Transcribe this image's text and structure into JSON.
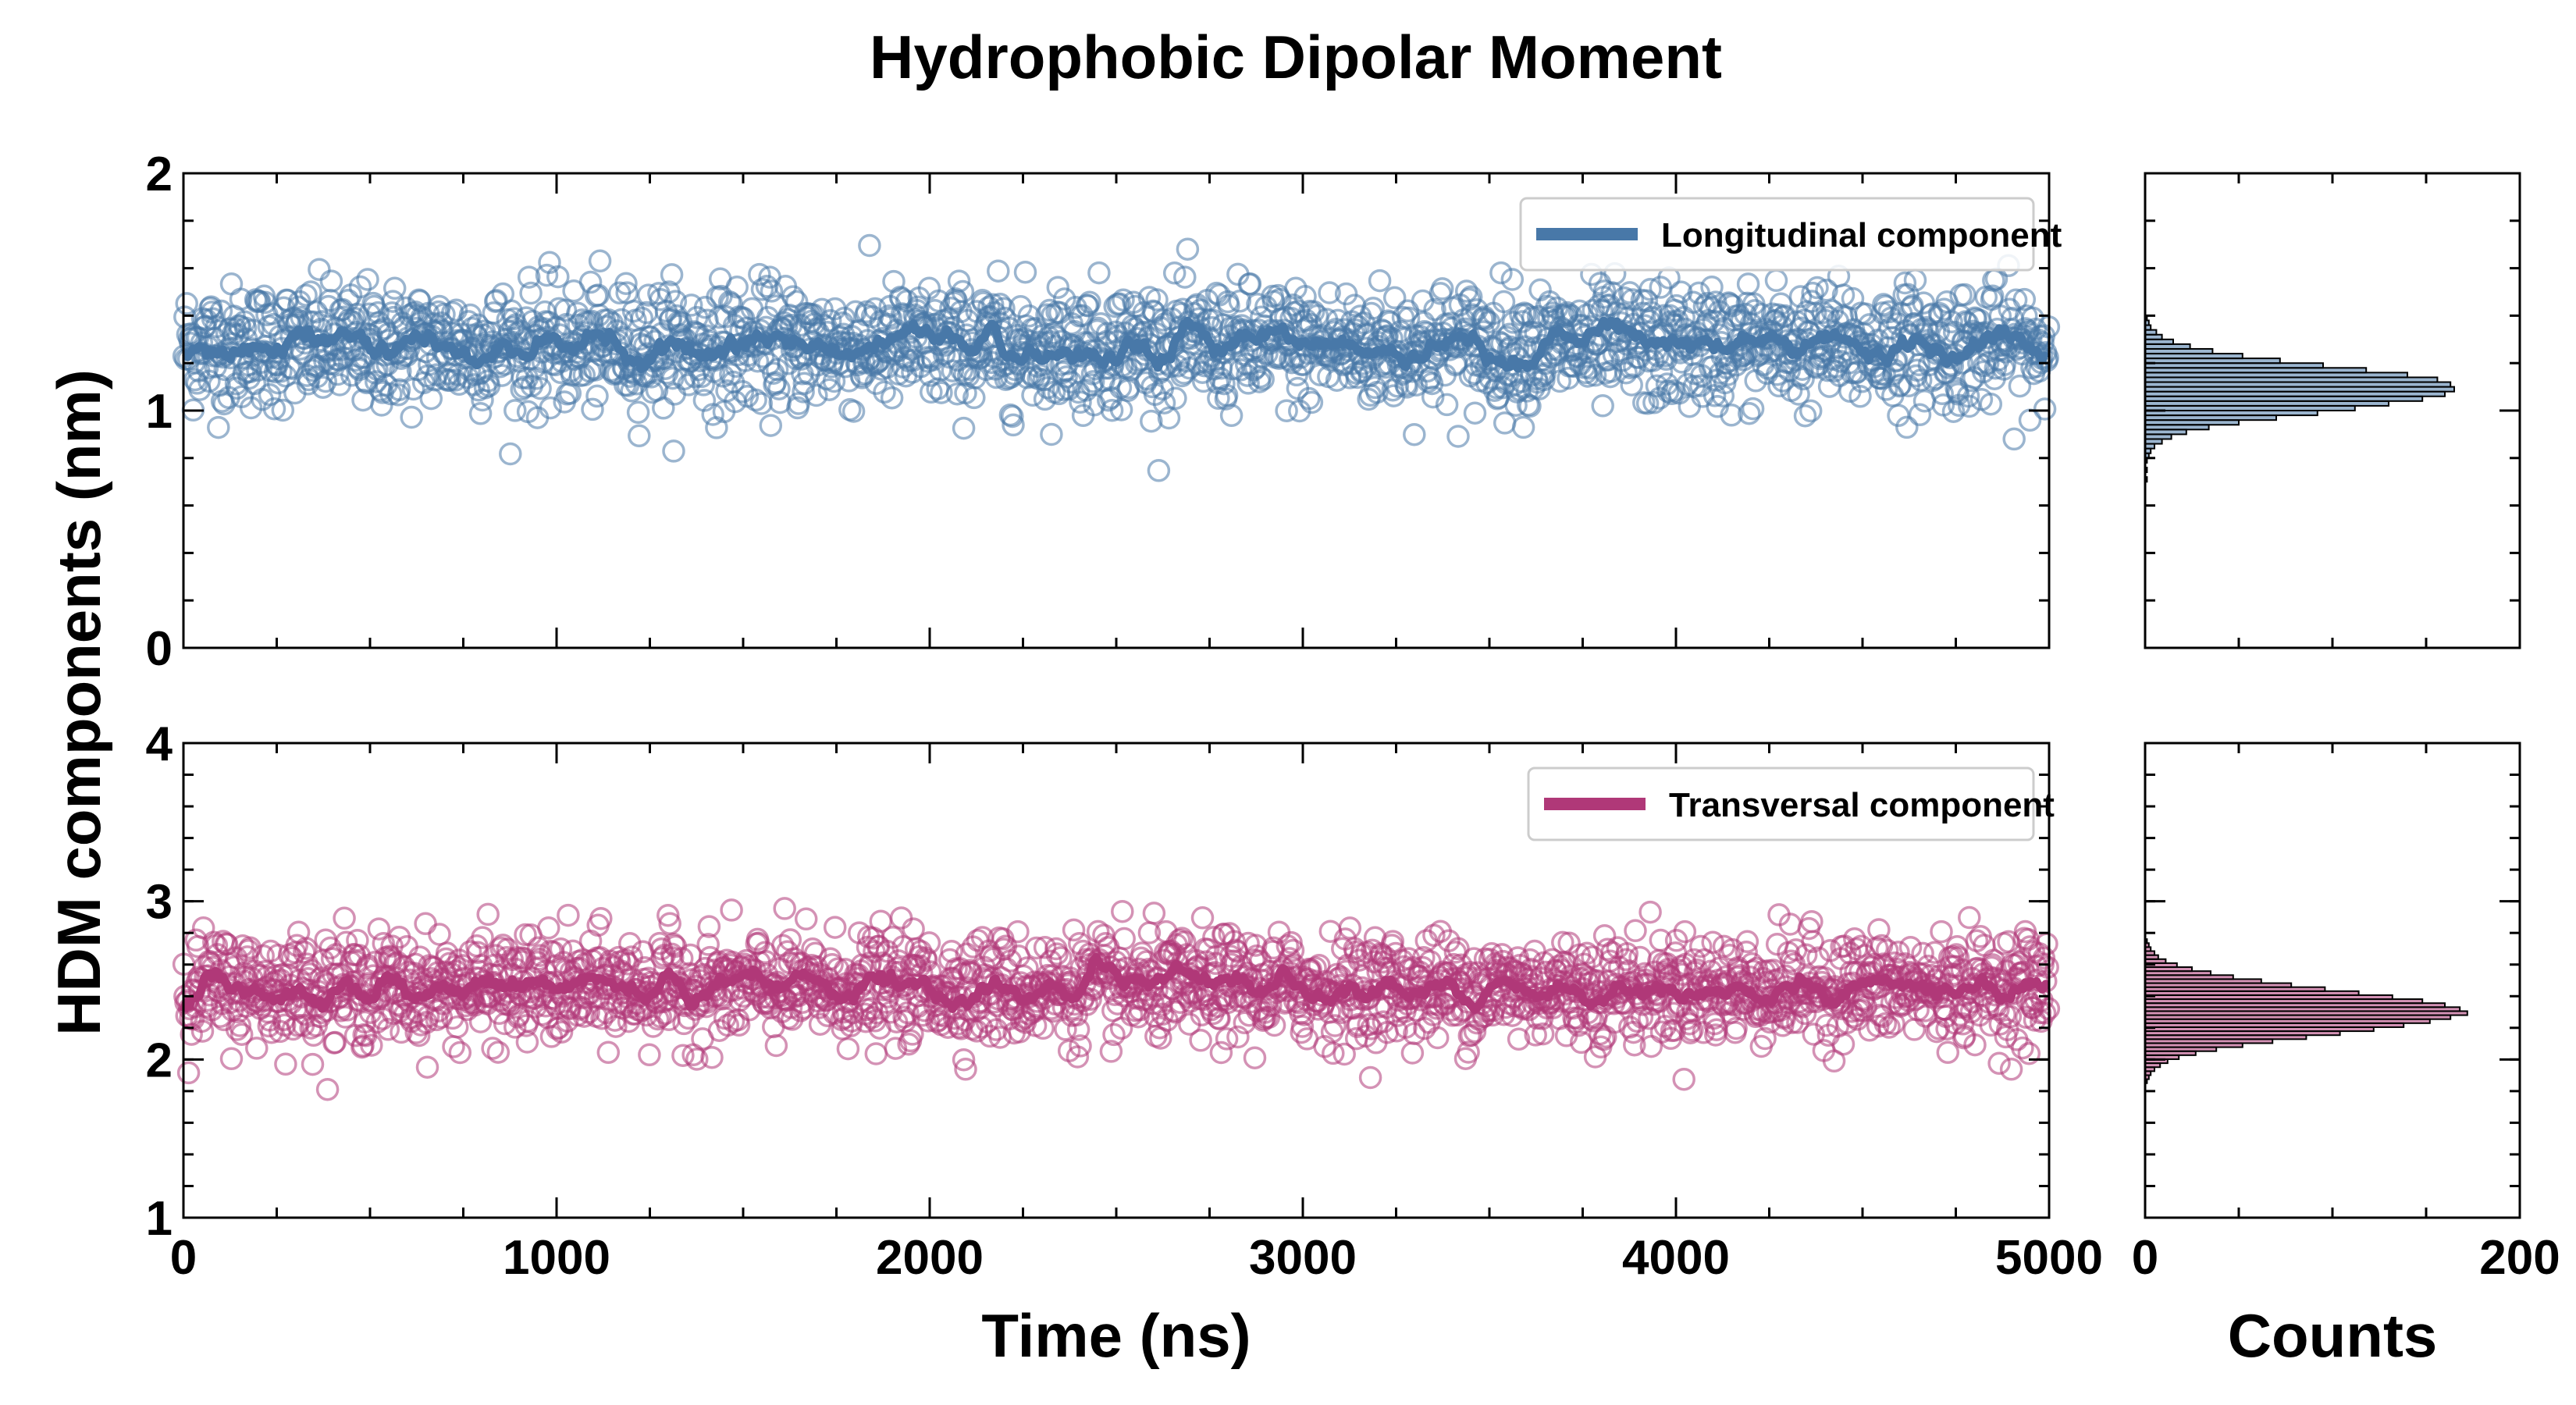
{
  "figure": {
    "title": "Hydrophobic Dipolar Moment",
    "ylabel": "HDM components (nm)",
    "xlabel": "Time (ns)",
    "xlabel_hist": "Counts"
  },
  "colors": {
    "longitudinal": "#4878a8",
    "transversal": "#b03878"
  },
  "chart_data": [
    {
      "type": "scatter",
      "panel": "top-left",
      "series": [
        {
          "name": "Longitudinal component",
          "mean": 1.27,
          "spread": 0.13,
          "smooth_line": true
        }
      ],
      "x_range": [
        0,
        5000
      ],
      "ylim": [
        0,
        2
      ],
      "yticks": [
        "0",
        "1",
        "2"
      ],
      "xticks": [
        "0",
        "1000",
        "2000",
        "3000",
        "4000",
        "5000"
      ],
      "n_points": 2000,
      "legend": "top-right"
    },
    {
      "type": "scatter",
      "panel": "bottom-left",
      "series": [
        {
          "name": "Transversal component",
          "mean": 2.45,
          "spread": 0.17,
          "smooth_line": true
        }
      ],
      "x_range": [
        0,
        5000
      ],
      "ylim": [
        1,
        4
      ],
      "yticks": [
        "1",
        "2",
        "3",
        "4"
      ],
      "xticks": [
        "0",
        "1000",
        "2000",
        "3000",
        "4000",
        "5000"
      ],
      "n_points": 2000,
      "legend": "top-right"
    },
    {
      "type": "bar",
      "orientation": "horizontal",
      "panel": "top-right",
      "name": "Longitudinal histogram",
      "bin_start": 0.7,
      "bin_width": 0.02,
      "counts": [
        1,
        0,
        1,
        0,
        1,
        2,
        3,
        5,
        9,
        14,
        22,
        34,
        50,
        70,
        92,
        112,
        130,
        148,
        160,
        165,
        163,
        156,
        140,
        118,
        95,
        72,
        52,
        36,
        24,
        15,
        9,
        6,
        3,
        2,
        1
      ],
      "xlim": [
        0,
        200
      ],
      "ylim": [
        0,
        2
      ],
      "xticks": [
        "0",
        "200"
      ]
    },
    {
      "type": "bar",
      "orientation": "horizontal",
      "panel": "bottom-right",
      "name": "Transversal histogram",
      "bin_start": 1.85,
      "bin_width": 0.0253,
      "counts": [
        1,
        2,
        3,
        5,
        8,
        12,
        18,
        27,
        38,
        52,
        68,
        86,
        104,
        122,
        138,
        152,
        163,
        172,
        168,
        160,
        148,
        132,
        114,
        96,
        78,
        62,
        47,
        35,
        25,
        17,
        11,
        7,
        5,
        3,
        2,
        1
      ],
      "xlim": [
        0,
        200
      ],
      "ylim": [
        1,
        4
      ],
      "xticks": [
        "0",
        "200"
      ]
    }
  ]
}
